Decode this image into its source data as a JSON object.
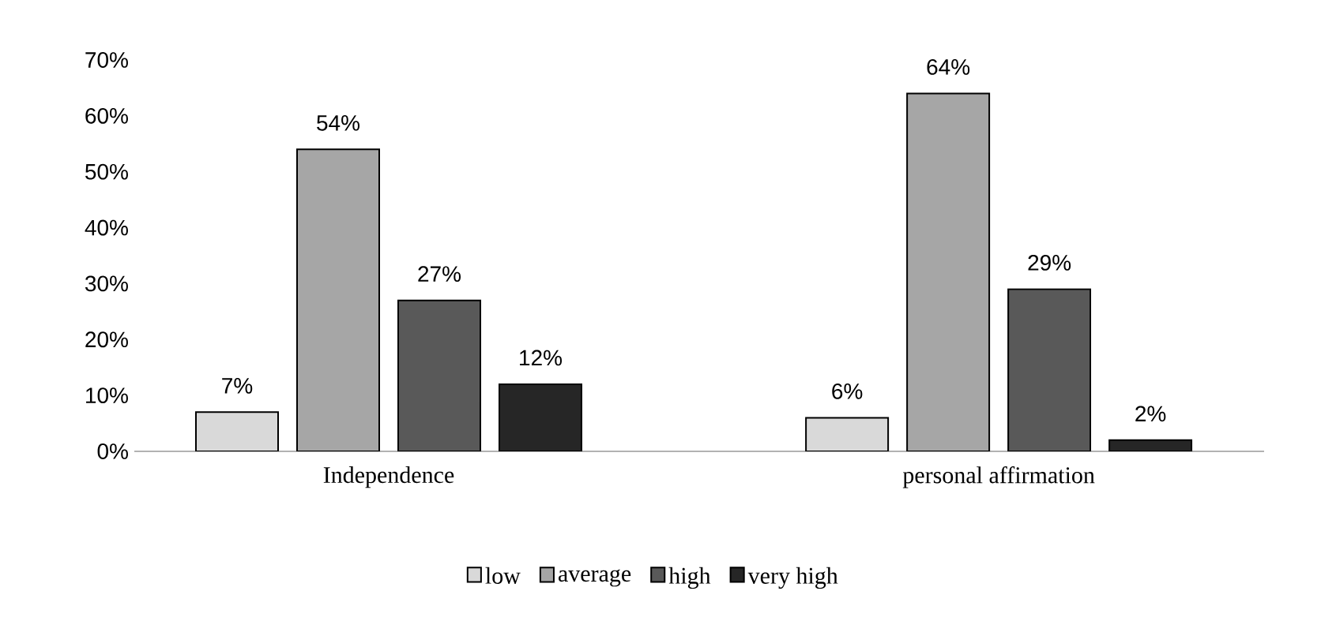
{
  "chart_data": {
    "type": "bar",
    "categories": [
      "Independence",
      "personal affirmation"
    ],
    "series": [
      {
        "name": "low",
        "color": "#d9d9d9",
        "values": [
          7,
          6
        ],
        "value_labels": [
          "7%",
          "6%"
        ]
      },
      {
        "name": "average",
        "color": "#a6a6a6",
        "values": [
          54,
          64
        ],
        "value_labels": [
          "54%",
          "64%"
        ]
      },
      {
        "name": "high",
        "color": "#595959",
        "values": [
          27,
          29
        ],
        "value_labels": [
          "27%",
          "29%"
        ]
      },
      {
        "name": "very high",
        "color": "#262626",
        "values": [
          12,
          2
        ],
        "value_labels": [
          "12%",
          "2%"
        ]
      }
    ],
    "ylim": [
      0,
      70
    ],
    "yticks": [
      {
        "value": 0,
        "label": "0%"
      },
      {
        "value": 10,
        "label": "10%"
      },
      {
        "value": 20,
        "label": "20%"
      },
      {
        "value": 30,
        "label": "30%"
      },
      {
        "value": 40,
        "label": "40%"
      },
      {
        "value": 50,
        "label": "50%"
      },
      {
        "value": 60,
        "label": "60%"
      },
      {
        "value": 70,
        "label": "70%"
      }
    ],
    "legend": "bottom",
    "grid": false
  }
}
